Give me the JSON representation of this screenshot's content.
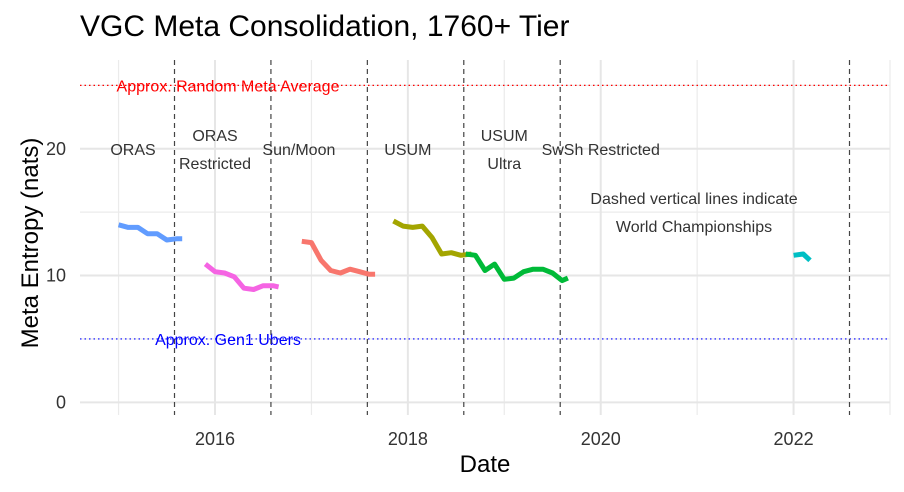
{
  "chart_data": {
    "type": "line",
    "title": "VGC Meta Consolidation, 1760+ Tier",
    "xlabel": "Date",
    "ylabel": "Meta Entropy (nats)",
    "xlim": [
      2014.6,
      2023.0
    ],
    "ylim": [
      -1.0,
      27.0
    ],
    "x_ticks": [
      2016,
      2018,
      2020,
      2022
    ],
    "x_tick_labels": [
      "2016",
      "2018",
      "2020",
      "2022"
    ],
    "y_ticks": [
      0,
      10,
      20
    ],
    "y_tick_labels": [
      "0",
      "10",
      "20"
    ],
    "grid": true,
    "legend": "none",
    "reference_lines": [
      {
        "y": 25,
        "label": "Approx. Random Meta Average",
        "color": "#ff0000"
      },
      {
        "y": 5,
        "label": "Approx. Gen1 Ubers",
        "color": "#0000ff"
      }
    ],
    "worlds_lines_x": [
      2015.58,
      2016.58,
      2017.58,
      2018.58,
      2019.58,
      2022.58
    ],
    "note_lines": [
      "Dashed vertical lines indicate",
      "World Championships"
    ],
    "eras": [
      {
        "lines": [
          "ORAS"
        ],
        "x": 2015.15,
        "y": 20
      },
      {
        "lines": [
          "ORAS",
          "Restricted"
        ],
        "x": 2016.0,
        "y": 20
      },
      {
        "lines": [
          "Sun/Moon"
        ],
        "x": 2016.87,
        "y": 20
      },
      {
        "lines": [
          "USUM"
        ],
        "x": 2018.0,
        "y": 20
      },
      {
        "lines": [
          "USUM",
          "Ultra"
        ],
        "x": 2019.0,
        "y": 20
      },
      {
        "lines": [
          "SwSh Restricted"
        ],
        "x": 2020.0,
        "y": 20
      }
    ],
    "series": [
      {
        "color": "#619cff",
        "x": [
          2015.0,
          2015.1,
          2015.2,
          2015.3,
          2015.4,
          2015.5,
          2015.6,
          2015.66
        ],
        "y": [
          14.0,
          13.8,
          13.8,
          13.3,
          13.3,
          12.8,
          12.9,
          12.9
        ]
      },
      {
        "color": "#f564e3",
        "x": [
          2015.9,
          2016.0,
          2016.1,
          2016.2,
          2016.3,
          2016.4,
          2016.5,
          2016.6,
          2016.66
        ],
        "y": [
          10.9,
          10.3,
          10.2,
          9.9,
          9.0,
          8.9,
          9.2,
          9.2,
          9.1
        ]
      },
      {
        "color": "#f8766d",
        "x": [
          2016.9,
          2017.0,
          2017.1,
          2017.2,
          2017.3,
          2017.4,
          2017.5,
          2017.6,
          2017.66
        ],
        "y": [
          12.7,
          12.6,
          11.2,
          10.4,
          10.2,
          10.5,
          10.3,
          10.1,
          10.1
        ]
      },
      {
        "color": "#a3a500",
        "x": [
          2017.85,
          2017.95,
          2018.05,
          2018.15,
          2018.25,
          2018.35,
          2018.45,
          2018.55,
          2018.66
        ],
        "y": [
          14.3,
          13.9,
          13.8,
          13.9,
          13.0,
          11.7,
          11.8,
          11.6,
          11.7
        ]
      },
      {
        "color": "#00ba38",
        "x": [
          2018.6,
          2018.7,
          2018.8,
          2018.9,
          2019.0,
          2019.1,
          2019.2,
          2019.3,
          2019.4,
          2019.5,
          2019.6,
          2019.66
        ],
        "y": [
          11.7,
          11.6,
          10.4,
          10.9,
          9.7,
          9.8,
          10.3,
          10.5,
          10.5,
          10.2,
          9.6,
          9.8
        ]
      },
      {
        "color": "#00bfc4",
        "x": [
          2022.0,
          2022.1,
          2022.17
        ],
        "y": [
          11.6,
          11.7,
          11.2
        ]
      }
    ]
  }
}
